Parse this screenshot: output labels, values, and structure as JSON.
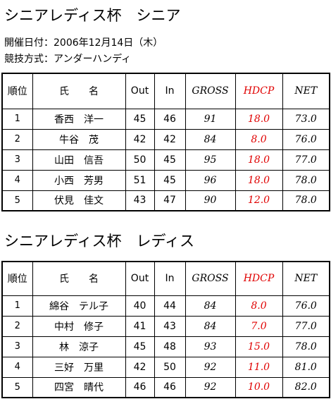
{
  "title": "シニアレディス杯　シニア",
  "info": [
    "開催日付：2006年12月14日（木）",
    "競技方式：アンダーハンディ"
  ],
  "tables": [
    {
      "header": [
        "順位",
        "氏　　名",
        "Out",
        "In",
        "GROSS",
        "HDCP",
        "NET"
      ],
      "rows": [
        [
          "1",
          "香西　洋一",
          "45",
          "46",
          "91",
          "18.0",
          "73.0"
        ],
        [
          "2",
          "牛谷　茂",
          "42",
          "42",
          "84",
          "8.0",
          "76.0"
        ],
        [
          "3",
          "山田　信吾",
          "50",
          "45",
          "95",
          "18.0",
          "77.0"
        ],
        [
          "4",
          "小西　芳男",
          "51",
          "45",
          "96",
          "18.0",
          "78.0"
        ],
        [
          "5",
          "伏見　佳文",
          "43",
          "47",
          "90",
          "12.0",
          "78.0"
        ]
      ]
    },
    {
      "title": "シニアレディス杯　レディス",
      "header": [
        "順位",
        "氏　　名",
        "Out",
        "In",
        "GROSS",
        "HDCP",
        "NET"
      ],
      "rows": [
        [
          "1",
          "綿谷　テル子",
          "40",
          "44",
          "84",
          "8.0",
          "76.0"
        ],
        [
          "2",
          "中村　修子",
          "41",
          "43",
          "84",
          "7.0",
          "77.0"
        ],
        [
          "3",
          "林　涼子",
          "45",
          "48",
          "93",
          "15.0",
          "78.0"
        ],
        [
          "4",
          "三好　万里",
          "42",
          "50",
          "92",
          "11.0",
          "81.0"
        ],
        [
          "5",
          "四宮　晴代",
          "46",
          "46",
          "92",
          "10.0",
          "82.0"
        ]
      ]
    }
  ]
}
